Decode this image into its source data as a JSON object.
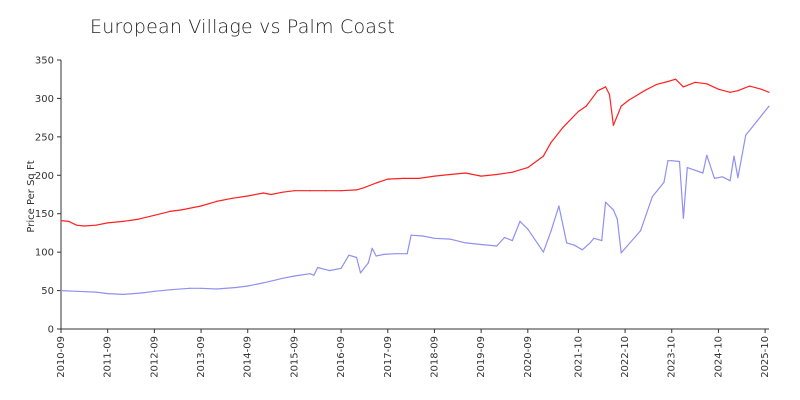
{
  "chart_data": {
    "type": "line",
    "title": "European Village vs Palm Coast",
    "xlabel": "",
    "ylabel": "Price Per Sq Ft",
    "ylim": [
      0,
      350
    ],
    "yticks": [
      0,
      50,
      100,
      150,
      200,
      250,
      300,
      350
    ],
    "xlim": [
      "2010-09",
      "2025-11"
    ],
    "xticks": [
      "2010-09",
      "2011-09",
      "2012-09",
      "2013-09",
      "2014-09",
      "2015-09",
      "2016-09",
      "2017-09",
      "2018-09",
      "2019-09",
      "2020-09",
      "2021-10",
      "2022-10",
      "2023-10",
      "2024-10",
      "2025-10"
    ],
    "grid": false,
    "legend": "none",
    "series": [
      {
        "color": "#ff2020",
        "points": [
          [
            "2010-09",
            141
          ],
          [
            "2010-11",
            140
          ],
          [
            "2011-01",
            135
          ],
          [
            "2011-03",
            134
          ],
          [
            "2011-06",
            135
          ],
          [
            "2011-09",
            138
          ],
          [
            "2012-01",
            140
          ],
          [
            "2012-05",
            143
          ],
          [
            "2012-09",
            148
          ],
          [
            "2013-01",
            153
          ],
          [
            "2013-04",
            155
          ],
          [
            "2013-09",
            160
          ],
          [
            "2014-01",
            166
          ],
          [
            "2014-05",
            170
          ],
          [
            "2014-09",
            173
          ],
          [
            "2015-01",
            177
          ],
          [
            "2015-03",
            175
          ],
          [
            "2015-06",
            178
          ],
          [
            "2015-09",
            180
          ],
          [
            "2016-01",
            180
          ],
          [
            "2016-05",
            180
          ],
          [
            "2016-09",
            180
          ],
          [
            "2017-01",
            181
          ],
          [
            "2017-03",
            184
          ],
          [
            "2017-06",
            190
          ],
          [
            "2017-09",
            195
          ],
          [
            "2018-01",
            196
          ],
          [
            "2018-05",
            196
          ],
          [
            "2018-09",
            199
          ],
          [
            "2019-01",
            201
          ],
          [
            "2019-05",
            203
          ],
          [
            "2019-09",
            199
          ],
          [
            "2020-01",
            201
          ],
          [
            "2020-05",
            204
          ],
          [
            "2020-09",
            210
          ],
          [
            "2021-01",
            225
          ],
          [
            "2021-03",
            243
          ],
          [
            "2021-06",
            262
          ],
          [
            "2021-10",
            283
          ],
          [
            "2021-12",
            290
          ],
          [
            "2022-03",
            310
          ],
          [
            "2022-05",
            315
          ],
          [
            "2022-06",
            305
          ],
          [
            "2022-07",
            265
          ],
          [
            "2022-09",
            290
          ],
          [
            "2022-11",
            298
          ],
          [
            "2023-03",
            310
          ],
          [
            "2023-06",
            318
          ],
          [
            "2023-09",
            322
          ],
          [
            "2023-11",
            325
          ],
          [
            "2024-01",
            315
          ],
          [
            "2024-04",
            321
          ],
          [
            "2024-07",
            319
          ],
          [
            "2024-10",
            312
          ],
          [
            "2025-01",
            308
          ],
          [
            "2025-03",
            310
          ],
          [
            "2025-06",
            316
          ],
          [
            "2025-09",
            312
          ],
          [
            "2025-11",
            308
          ]
        ]
      },
      {
        "color": "#9090f0",
        "points": [
          [
            "2010-09",
            50
          ],
          [
            "2011-01",
            49
          ],
          [
            "2011-06",
            48
          ],
          [
            "2011-09",
            46
          ],
          [
            "2012-01",
            45
          ],
          [
            "2012-06",
            47
          ],
          [
            "2012-09",
            49
          ],
          [
            "2013-01",
            51
          ],
          [
            "2013-06",
            53
          ],
          [
            "2013-09",
            53
          ],
          [
            "2014-01",
            52
          ],
          [
            "2014-06",
            54
          ],
          [
            "2014-09",
            56
          ],
          [
            "2015-01",
            60
          ],
          [
            "2015-06",
            66
          ],
          [
            "2015-09",
            69
          ],
          [
            "2016-01",
            72
          ],
          [
            "2016-02",
            70
          ],
          [
            "2016-03",
            80
          ],
          [
            "2016-06",
            76
          ],
          [
            "2016-09",
            79
          ],
          [
            "2016-11",
            96
          ],
          [
            "2017-01",
            93
          ],
          [
            "2017-02",
            73
          ],
          [
            "2017-04",
            86
          ],
          [
            "2017-05",
            105
          ],
          [
            "2017-06",
            95
          ],
          [
            "2017-08",
            97
          ],
          [
            "2017-11",
            98
          ],
          [
            "2018-02",
            98
          ],
          [
            "2018-03",
            122
          ],
          [
            "2018-06",
            121
          ],
          [
            "2018-09",
            118
          ],
          [
            "2019-01",
            117
          ],
          [
            "2019-05",
            112
          ],
          [
            "2019-09",
            110
          ],
          [
            "2020-01",
            108
          ],
          [
            "2020-03",
            119
          ],
          [
            "2020-05",
            115
          ],
          [
            "2020-07",
            140
          ],
          [
            "2020-09",
            130
          ],
          [
            "2021-01",
            100
          ],
          [
            "2021-03",
            128
          ],
          [
            "2021-05",
            160
          ],
          [
            "2021-07",
            112
          ],
          [
            "2021-09",
            109
          ],
          [
            "2021-11",
            103
          ],
          [
            "2022-01",
            112
          ],
          [
            "2022-02",
            118
          ],
          [
            "2022-04",
            115
          ],
          [
            "2022-05",
            165
          ],
          [
            "2022-07",
            155
          ],
          [
            "2022-08",
            143
          ],
          [
            "2022-09",
            99
          ],
          [
            "2023-02",
            128
          ],
          [
            "2023-05",
            172
          ],
          [
            "2023-08",
            191
          ],
          [
            "2023-09",
            219
          ],
          [
            "2023-10",
            219
          ],
          [
            "2023-12",
            218
          ],
          [
            "2024-01",
            144
          ],
          [
            "2024-02",
            210
          ],
          [
            "2024-06",
            203
          ],
          [
            "2024-07",
            226
          ],
          [
            "2024-09",
            196
          ],
          [
            "2024-11",
            198
          ],
          [
            "2025-01",
            193
          ],
          [
            "2025-02",
            225
          ],
          [
            "2025-03",
            197
          ],
          [
            "2025-05",
            252
          ],
          [
            "2025-11",
            290
          ]
        ]
      }
    ]
  }
}
